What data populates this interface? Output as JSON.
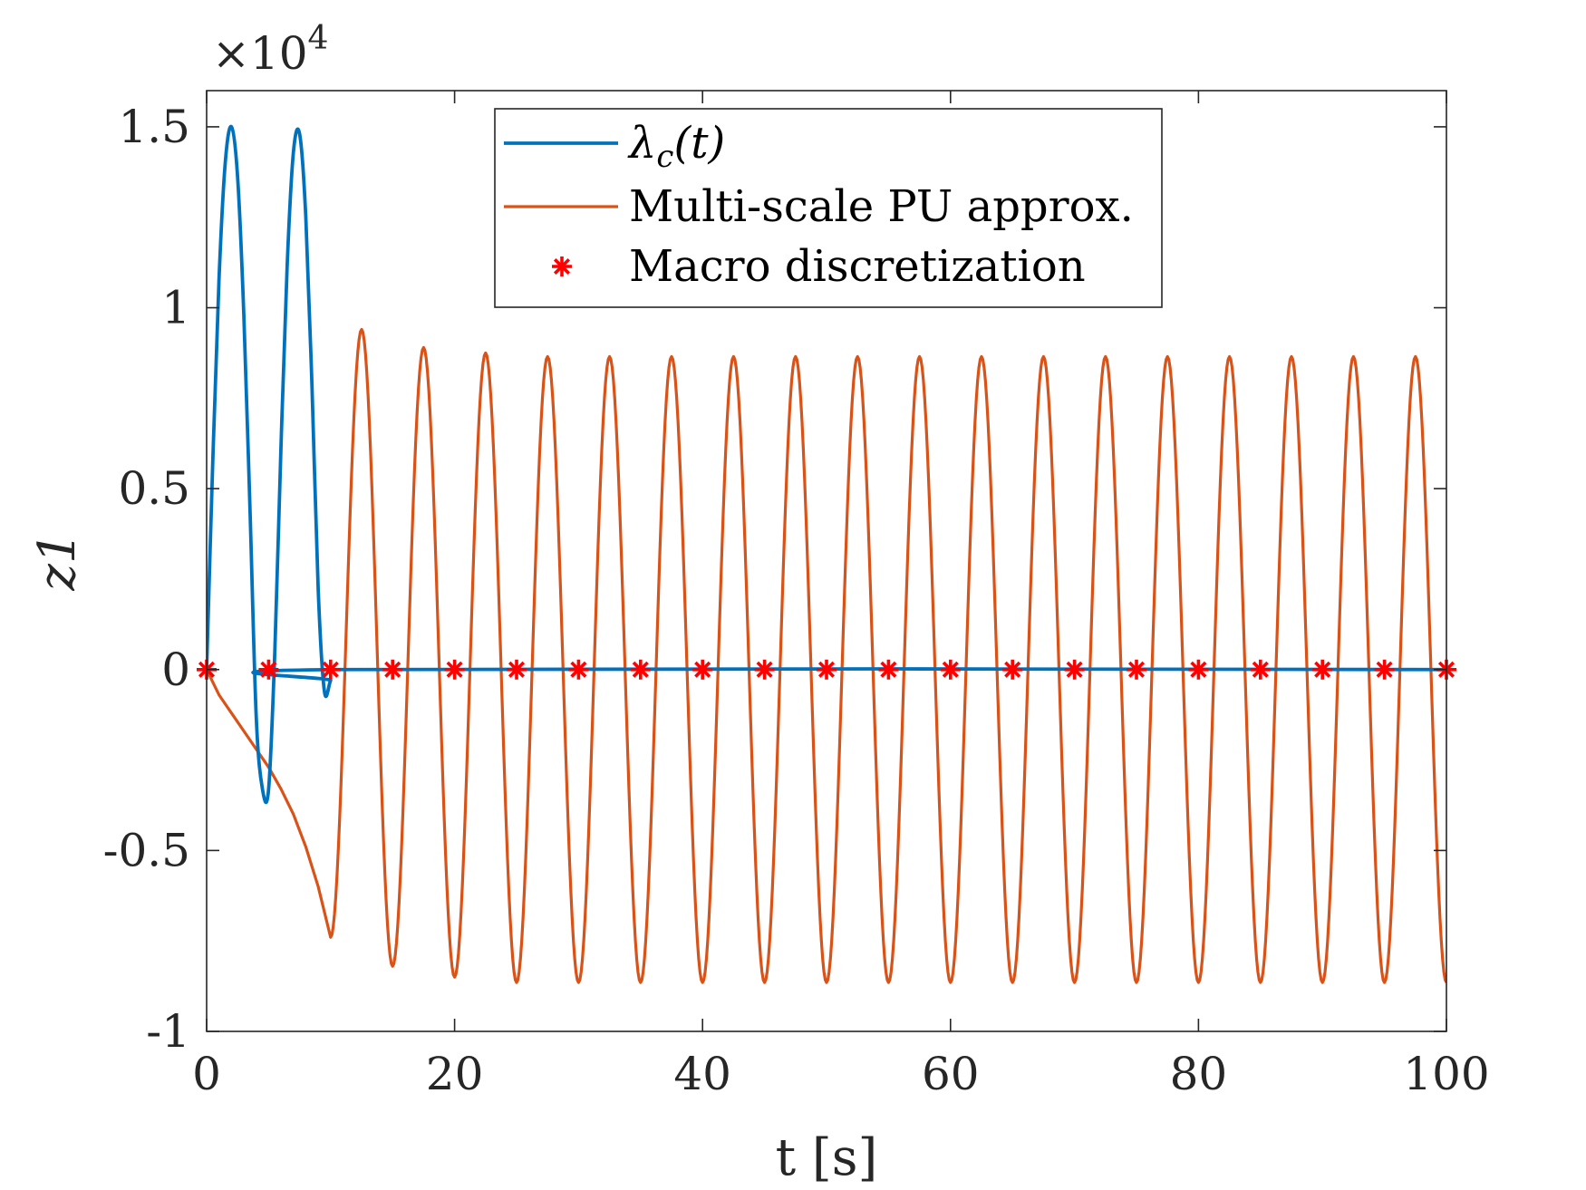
{
  "chart_data": {
    "type": "line",
    "title": "",
    "xlabel": "t [s]",
    "ylabel": "z1",
    "y_exponent_label": "×10",
    "y_exponent_power": "4",
    "xlim": [
      0,
      100
    ],
    "ylim": [
      -1,
      1.6
    ],
    "xticks": [
      0,
      20,
      40,
      60,
      80,
      100
    ],
    "xtick_labels": [
      "0",
      "20",
      "40",
      "60",
      "80",
      "100"
    ],
    "yticks": [
      -1,
      -0.5,
      0,
      0.5,
      1,
      1.5
    ],
    "ytick_labels": [
      "-1",
      "-0.5",
      "0",
      "0.5",
      "1",
      "1.5"
    ],
    "grid": false,
    "legend_position": "top-center",
    "series": [
      {
        "name": "λc(t)",
        "legend_main": "λ",
        "legend_sub": "c",
        "legend_tail": "(t)",
        "color": "#0072BD",
        "kind": "line",
        "description": "oscillation of amplitude about 1.5 on 0 to 10 s, zero afterwards",
        "points": [
          [
            0,
            0
          ],
          [
            0.5,
            0.58
          ],
          [
            1.0,
            1.08
          ],
          [
            1.5,
            1.4
          ],
          [
            2.0,
            1.5
          ],
          [
            2.5,
            1.36
          ],
          [
            3.0,
            0.98
          ],
          [
            3.5,
            0.44
          ],
          [
            4.0,
            -0.13
          ],
          [
            4.5,
            -0.33
          ],
          [
            5.0,
            -0.33
          ],
          [
            5.5,
            0.05
          ],
          [
            6.0,
            0.62
          ],
          [
            6.5,
            1.12
          ],
          [
            7.0,
            1.43
          ],
          [
            7.5,
            1.48
          ],
          [
            8.0,
            1.25
          ],
          [
            8.5,
            0.78
          ],
          [
            9.0,
            0.22
          ],
          [
            9.5,
            -0.06
          ],
          [
            10.0,
            -0.03
          ],
          [
            10.5,
            0
          ],
          [
            100,
            0
          ]
        ]
      },
      {
        "name": "Multi-scale PU approx.",
        "color": "#D95319",
        "kind": "line",
        "description": "negative drift on 0 to 10 s, then sustained oscillation of amplitude about 0.87 with period 5 s",
        "pre_points": [
          [
            0,
            0
          ],
          [
            1,
            -0.07
          ],
          [
            2,
            -0.12
          ],
          [
            3,
            -0.17
          ],
          [
            4,
            -0.22
          ],
          [
            5,
            -0.27
          ],
          [
            6,
            -0.33
          ],
          [
            7,
            -0.4
          ],
          [
            8,
            -0.49
          ],
          [
            9,
            -0.6
          ],
          [
            10,
            -0.74
          ]
        ],
        "oscillation": {
          "start": 10,
          "end": 100,
          "period": 5,
          "offset": 0,
          "amplitude": 0.865,
          "initial_value": -0.74,
          "first_peak": 0.94,
          "second_trough": -0.82,
          "second_peak": 0.89,
          "third_trough": -0.85,
          "third_peak": 0.875
        }
      },
      {
        "name": "Macro discretization",
        "color": "#FF0000",
        "kind": "marker",
        "marker": "*",
        "x": [
          0,
          5,
          10,
          15,
          20,
          25,
          30,
          35,
          40,
          45,
          50,
          55,
          60,
          65,
          70,
          75,
          80,
          85,
          90,
          95,
          100
        ],
        "y": [
          0,
          0,
          0,
          0,
          0,
          0,
          0,
          0,
          0,
          0,
          0,
          0,
          0,
          0,
          0,
          0,
          0,
          0,
          0,
          0,
          0
        ]
      }
    ]
  }
}
